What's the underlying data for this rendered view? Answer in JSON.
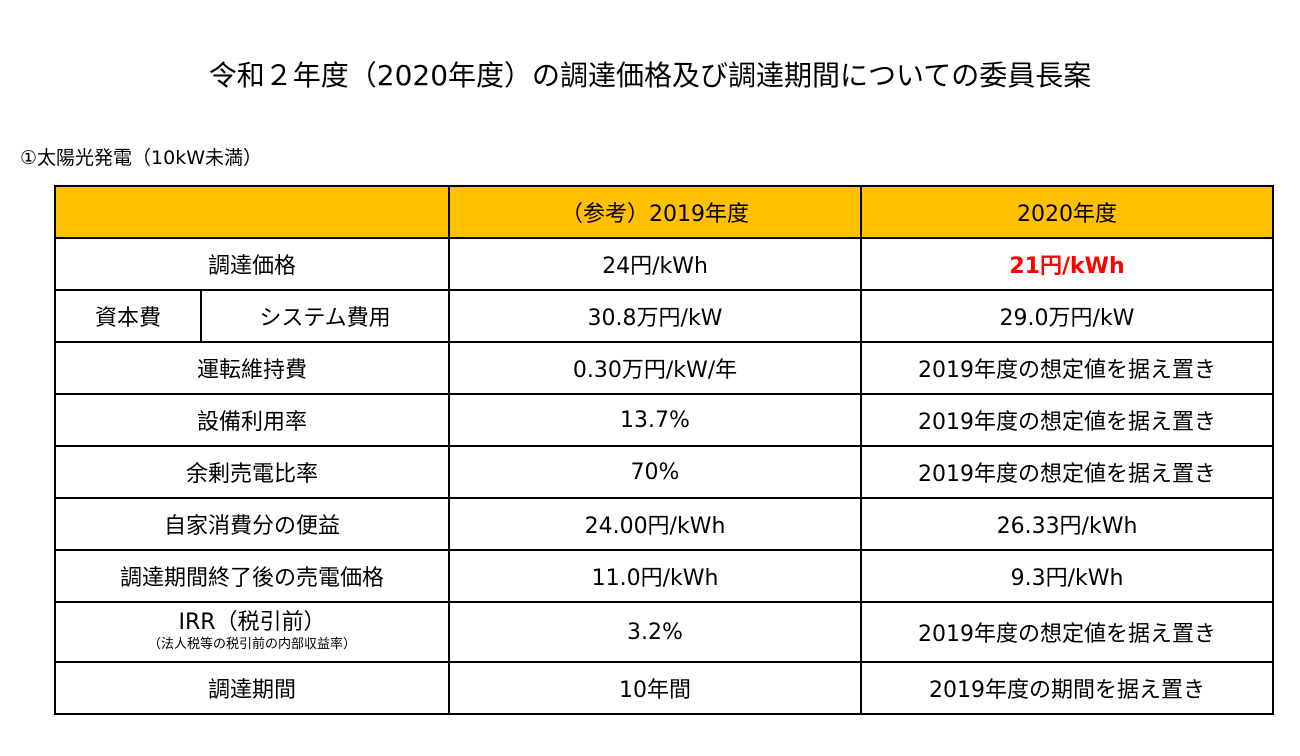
{
  "title": "令和２年度（2020年度）の調達価格及び調達期間についての委員長案",
  "subtitle": "①太陽光発電（10kW未満）",
  "colors": {
    "header_bg": "#ffc000",
    "highlight": "#ff0000"
  },
  "table": {
    "headers": [
      "",
      "（参考）2019年度",
      "2020年度"
    ],
    "rows": [
      {
        "label": "調達価格",
        "v2019": "24円/kWh",
        "v2020": "21円/kWh"
      },
      {
        "label_group": "資本費",
        "label_sub": "システム費用",
        "v2019": "30.8万円/kW",
        "v2020": "29.0万円/kW"
      },
      {
        "label": "運転維持費",
        "v2019": "0.30万円/kW/年",
        "v2020": "2019年度の想定値を据え置き"
      },
      {
        "label": "設備利用率",
        "v2019": "13.7%",
        "v2020": "2019年度の想定値を据え置き"
      },
      {
        "label": "余剰売電比率",
        "v2019": "70%",
        "v2020": "2019年度の想定値を据え置き"
      },
      {
        "label": "自家消費分の便益",
        "v2019": "24.00円/kWh",
        "v2020": "26.33円/kWh"
      },
      {
        "label": "調達期間終了後の売電価格",
        "v2019": "11.0円/kWh",
        "v2020": "9.3円/kWh"
      },
      {
        "label": "IRR（税引前）",
        "label_note": "（法人税等の税引前の内部収益率）",
        "v2019": "3.2%",
        "v2020": "2019年度の想定値を据え置き"
      },
      {
        "label": "調達期間",
        "v2019": "10年間",
        "v2020": "2019年度の期間を据え置き"
      }
    ]
  }
}
